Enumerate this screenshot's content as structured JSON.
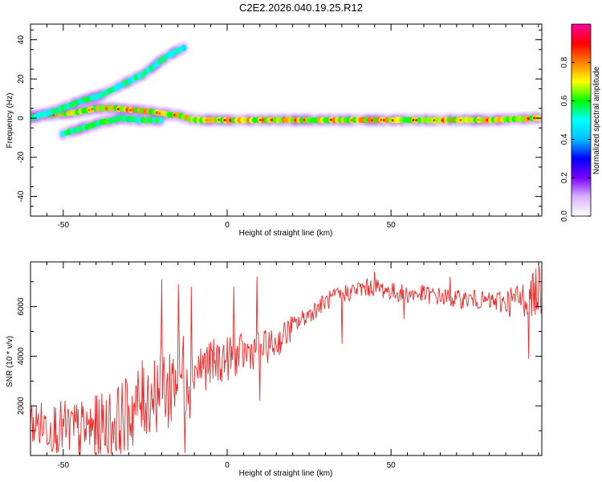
{
  "figure_title": "C2E2.2026.040.19.25.R12",
  "colors": {
    "snr_line": "#ee2a2a",
    "colormap": [
      "#ffffff",
      "#d9b3ff",
      "#7a00ff",
      "#0000ff",
      "#00c0ff",
      "#00ffff",
      "#00ff00",
      "#ffff00",
      "#ff8000",
      "#ff0000",
      "#ff00a0"
    ]
  },
  "chart_data": [
    {
      "type": "heatmap",
      "name": "spectrogram",
      "xlabel": "Height of straight line (km)",
      "ylabel": "Frequency (Hz)",
      "xlim": [
        -60,
        96
      ],
      "ylim": [
        -50,
        48
      ],
      "xticks": [
        -50,
        0,
        50
      ],
      "yticks": [
        -40,
        -20,
        0,
        20,
        40
      ],
      "tracks": [
        {
          "name": "main-echo",
          "points": [
            [
              -60,
              1
            ],
            [
              -52,
              2
            ],
            [
              -46,
              3
            ],
            [
              -40,
              5
            ],
            [
              -34,
              5
            ],
            [
              -28,
              4
            ],
            [
              -22,
              3
            ],
            [
              -18,
              2
            ],
            [
              -14,
              1
            ],
            [
              -10,
              -1
            ],
            [
              0,
              -1
            ],
            [
              20,
              -1
            ],
            [
              40,
              -1
            ],
            [
              60,
              -1
            ],
            [
              80,
              -1
            ],
            [
              95,
              0
            ]
          ],
          "amplitude": 0.9
        },
        {
          "name": "upper-branch",
          "points": [
            [
              -60,
              0
            ],
            [
              -52,
              4
            ],
            [
              -44,
              9
            ],
            [
              -38,
              12
            ],
            [
              -32,
              17
            ],
            [
              -26,
              22
            ],
            [
              -22,
              27
            ],
            [
              -18,
              32
            ],
            [
              -13,
              36
            ]
          ],
          "amplitude": 0.45
        },
        {
          "name": "lower-branch",
          "points": [
            [
              -50,
              -8
            ],
            [
              -44,
              -5
            ],
            [
              -38,
              -2
            ],
            [
              -32,
              0
            ],
            [
              -26,
              -1
            ],
            [
              -20,
              -1
            ]
          ],
          "amplitude": 0.55
        }
      ],
      "colorbar": {
        "label": "Normalized spectral amplitude",
        "range": [
          0,
          1
        ],
        "ticks": [
          "0.0",
          "0.2",
          "0.4",
          "0.6",
          "0.8"
        ]
      }
    },
    {
      "type": "line",
      "name": "snr",
      "xlabel": "Height of straight line (km)",
      "ylabel": "SNR (10 * v/v)",
      "xlim": [
        -60,
        96
      ],
      "ylim": [
        0,
        7800
      ],
      "xticks": [
        -50,
        0,
        50
      ],
      "yticks": [
        2000,
        4000,
        6000
      ],
      "trend": [
        [
          -60,
          1300
        ],
        [
          -55,
          1200
        ],
        [
          -50,
          1100
        ],
        [
          -45,
          1000
        ],
        [
          -40,
          1100
        ],
        [
          -35,
          1300
        ],
        [
          -30,
          1700
        ],
        [
          -25,
          2300
        ],
        [
          -20,
          2800
        ],
        [
          -15,
          3200
        ],
        [
          -11,
          3500
        ],
        [
          -5,
          3700
        ],
        [
          0,
          3900
        ],
        [
          5,
          4100
        ],
        [
          10,
          4300
        ],
        [
          15,
          4500
        ],
        [
          20,
          5200
        ],
        [
          25,
          5700
        ],
        [
          30,
          6200
        ],
        [
          35,
          6500
        ],
        [
          40,
          6700
        ],
        [
          45,
          6800
        ],
        [
          50,
          6600
        ],
        [
          55,
          6500
        ],
        [
          60,
          6500
        ],
        [
          65,
          6400
        ],
        [
          70,
          6300
        ],
        [
          75,
          6300
        ],
        [
          80,
          6200
        ],
        [
          85,
          6200
        ],
        [
          90,
          6300
        ],
        [
          96,
          6700
        ]
      ],
      "spikes": [
        [
          -20,
          7100
        ],
        [
          -18,
          1100
        ],
        [
          -15,
          6900
        ],
        [
          -13,
          100
        ],
        [
          -11,
          6800
        ],
        [
          2,
          6800
        ],
        [
          9,
          7200
        ],
        [
          10,
          2200
        ],
        [
          35,
          4500
        ],
        [
          45,
          7400
        ],
        [
          54,
          5500
        ],
        [
          68,
          7200
        ],
        [
          92,
          3900
        ],
        [
          95,
          7700
        ]
      ]
    }
  ]
}
